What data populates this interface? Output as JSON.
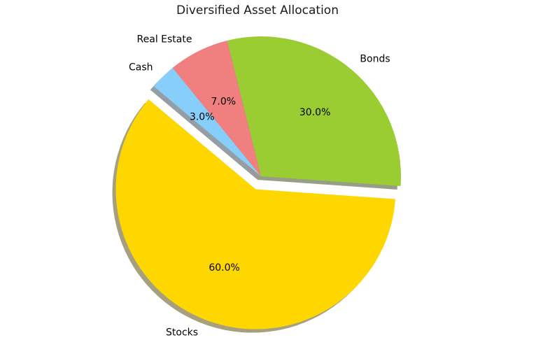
{
  "page": {
    "background": "#ffffff"
  },
  "chart_data": {
    "type": "pie",
    "title": "Diversified Asset Allocation",
    "labels": [
      "Stocks",
      "Bonds",
      "Real Estate",
      "Cash"
    ],
    "values": [
      60,
      30,
      7,
      3
    ],
    "pct_labels": [
      "60.0%",
      "30.0%",
      "7.0%",
      "3.0%"
    ],
    "colors": [
      "#ffd700",
      "#9acd32",
      "#f08080",
      "#87cefa"
    ],
    "startangle": 140,
    "counterclock": true,
    "explode": [
      0.1,
      0,
      0,
      0
    ],
    "shadow": true,
    "labeldistance": 1.1,
    "pctdistance": 0.6,
    "legend": "none",
    "text_color": "#000000"
  }
}
